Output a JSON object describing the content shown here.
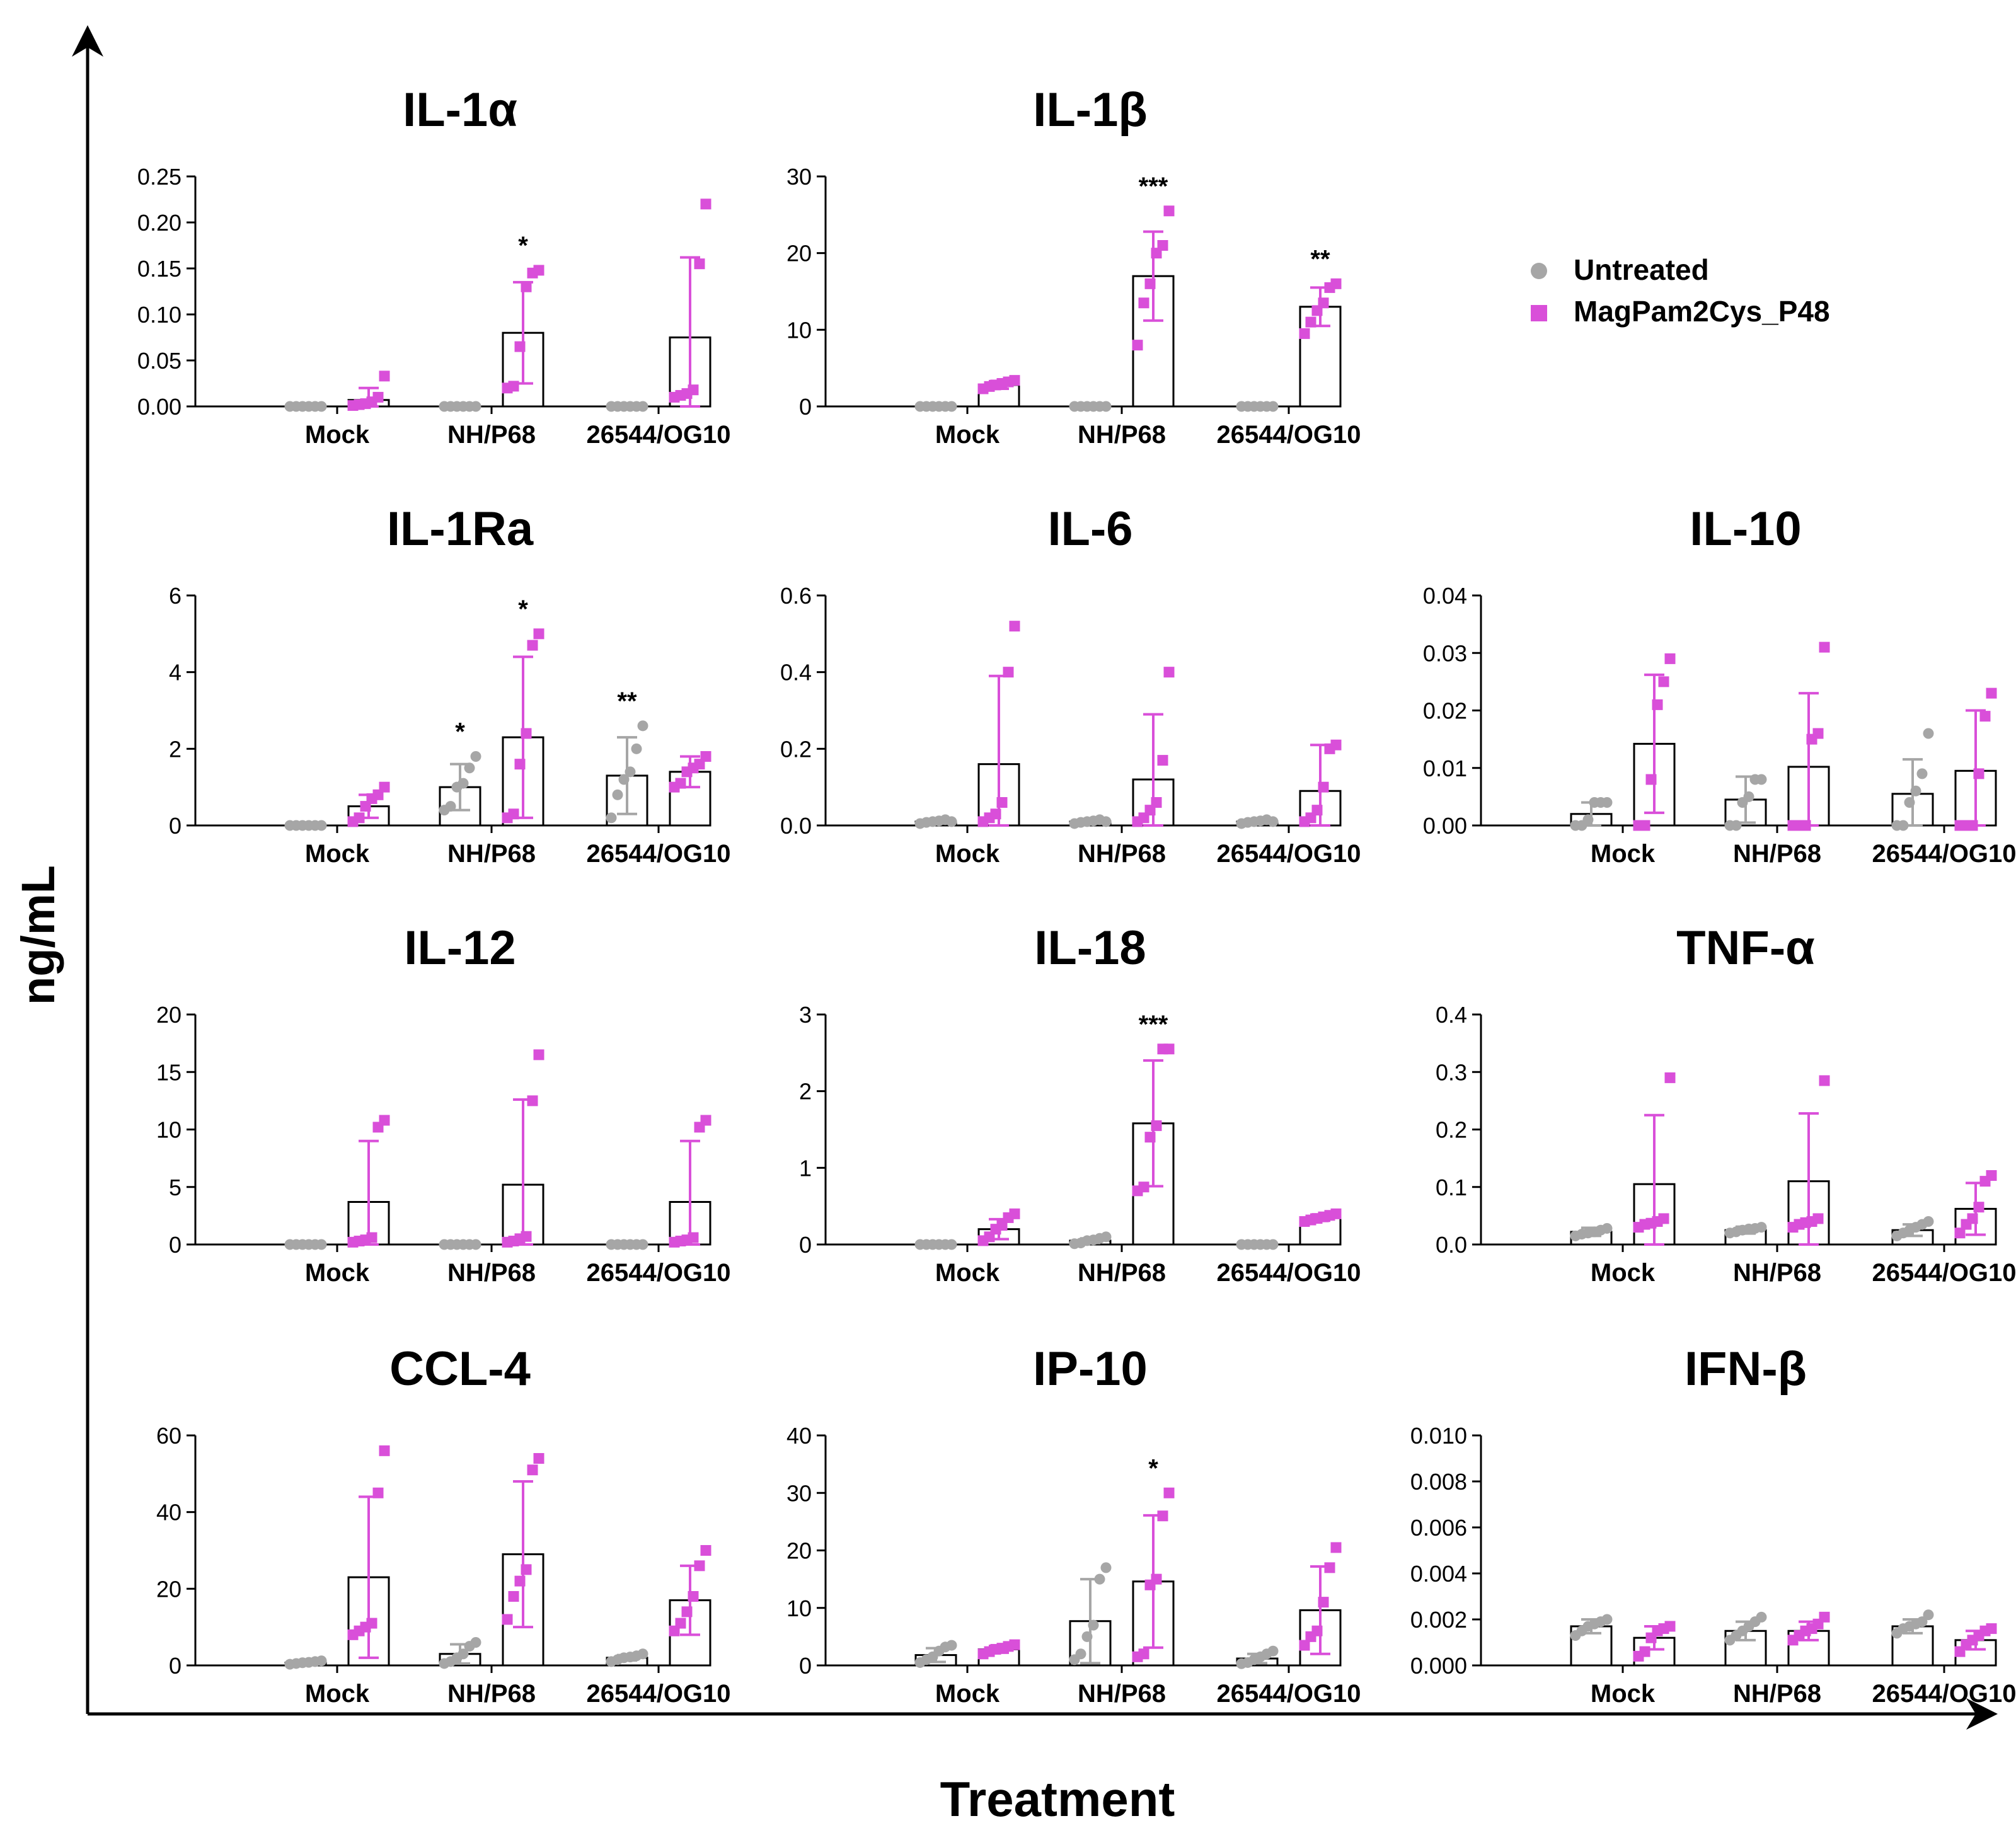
{
  "figure": {
    "ylabel": "ng/mL",
    "xlabel": "Treatment",
    "legend": {
      "placement": "top-right",
      "entries": [
        {
          "label": "Untreated",
          "color": "#a6a6a6",
          "marker": "circle"
        },
        {
          "label": "MagPam2Cys_P48",
          "color": "#d94fd9",
          "marker": "square"
        }
      ]
    },
    "colors": {
      "untreated": "#a6a6a6",
      "treated": "#d94fd9",
      "axis": "#000000"
    }
  },
  "chart_data": [
    {
      "type": "bar",
      "title": "IL-1α",
      "categories": [
        "Mock",
        "NH/P68",
        "26544/OG10"
      ],
      "ylim": [
        0,
        0.25
      ],
      "yticks": [
        "0.00",
        "0.05",
        "0.10",
        "0.15",
        "0.20",
        "0.25"
      ],
      "series": [
        {
          "name": "Untreated",
          "values": [
            0,
            0,
            0
          ],
          "errors": [
            0,
            0,
            0
          ],
          "points": [
            [
              0,
              0,
              0,
              0,
              0,
              0
            ],
            [
              0,
              0,
              0,
              0,
              0,
              0
            ],
            [
              0,
              0,
              0,
              0,
              0,
              0
            ]
          ]
        },
        {
          "name": "MagPam2Cys_P48",
          "values": [
            0.007,
            0.08,
            0.075
          ],
          "errors": [
            0.013,
            0.055,
            0.087
          ],
          "points": [
            [
              0.001,
              0.002,
              0.003,
              0.005,
              0.01,
              0.033
            ],
            [
              0.02,
              0.022,
              0.065,
              0.13,
              0.145,
              0.148
            ],
            [
              0.01,
              0.012,
              0.014,
              0.018,
              0.155,
              0.22
            ]
          ]
        }
      ],
      "annotations": [
        "",
        "*",
        ""
      ]
    },
    {
      "type": "bar",
      "title": "IL-1β",
      "categories": [
        "Mock",
        "NH/P68",
        "26544/OG10"
      ],
      "ylim": [
        0,
        30
      ],
      "yticks": [
        "0",
        "10",
        "20",
        "30"
      ],
      "series": [
        {
          "name": "Untreated",
          "values": [
            0,
            0,
            0
          ],
          "errors": [
            0,
            0,
            0
          ],
          "points": [
            [
              0,
              0,
              0,
              0,
              0,
              0
            ],
            [
              0,
              0,
              0,
              0,
              0,
              0
            ],
            [
              0,
              0,
              0,
              0,
              0,
              0
            ]
          ]
        },
        {
          "name": "MagPam2Cys_P48",
          "values": [
            2.8,
            17,
            13
          ],
          "errors": [
            0.5,
            5.8,
            2.5
          ],
          "points": [
            [
              2.3,
              2.6,
              2.8,
              3.0,
              3.2,
              3.4
            ],
            [
              8,
              13.5,
              16,
              20,
              21,
              25.5
            ],
            [
              9.5,
              11,
              12.5,
              13.5,
              15.5,
              16
            ]
          ]
        }
      ],
      "annotations": [
        "",
        "***",
        "**"
      ]
    },
    {
      "type": "bar",
      "title": "IL-1Ra",
      "categories": [
        "Mock",
        "NH/P68",
        "26544/OG10"
      ],
      "ylim": [
        0,
        6
      ],
      "yticks": [
        "0",
        "2",
        "4",
        "6"
      ],
      "series": [
        {
          "name": "Untreated",
          "values": [
            0,
            1.0,
            1.3
          ],
          "errors": [
            0,
            0.6,
            1.0
          ],
          "points": [
            [
              0,
              0,
              0,
              0,
              0,
              0
            ],
            [
              0.4,
              0.5,
              1.0,
              1.1,
              1.5,
              1.8
            ],
            [
              0.2,
              0.8,
              1.2,
              1.4,
              2.0,
              2.6
            ]
          ]
        },
        {
          "name": "MagPam2Cys_P48",
          "values": [
            0.5,
            2.3,
            1.4
          ],
          "errors": [
            0.3,
            2.1,
            0.4
          ],
          "points": [
            [
              0.1,
              0.2,
              0.5,
              0.7,
              0.8,
              1.0
            ],
            [
              0.2,
              0.3,
              1.6,
              2.4,
              4.7,
              5.0
            ],
            [
              1.0,
              1.1,
              1.4,
              1.5,
              1.6,
              1.8
            ]
          ]
        }
      ],
      "annotations": [
        "",
        "*",
        "**",
        "",
        "*",
        ""
      ]
    },
    {
      "type": "bar",
      "title": "IL-6",
      "categories": [
        "Mock",
        "NH/P68",
        "26544/OG10"
      ],
      "ylim": [
        0,
        0.6
      ],
      "yticks": [
        "0.0",
        "0.2",
        "0.4",
        "0.6"
      ],
      "series": [
        {
          "name": "Untreated",
          "values": [
            0.01,
            0.01,
            0.01
          ],
          "errors": [
            0.005,
            0.005,
            0.005
          ],
          "points": [
            [
              0.005,
              0.008,
              0.01,
              0.012,
              0.015,
              0.01
            ],
            [
              0.005,
              0.008,
              0.01,
              0.012,
              0.015,
              0.01
            ],
            [
              0.005,
              0.008,
              0.01,
              0.012,
              0.015,
              0.01
            ]
          ]
        },
        {
          "name": "MagPam2Cys_P48",
          "values": [
            0.16,
            0.12,
            0.09
          ],
          "errors": [
            0.23,
            0.17,
            0.12
          ],
          "points": [
            [
              0.01,
              0.02,
              0.03,
              0.06,
              0.4,
              0.52
            ],
            [
              0.01,
              0.02,
              0.04,
              0.06,
              0.17,
              0.4
            ],
            [
              0.01,
              0.02,
              0.04,
              0.1,
              0.2,
              0.21
            ]
          ]
        }
      ],
      "annotations": [
        "",
        "",
        ""
      ]
    },
    {
      "type": "bar",
      "title": "IL-10",
      "categories": [
        "Mock",
        "NH/P68",
        "26544/OG10"
      ],
      "ylim": [
        0,
        0.04
      ],
      "yticks": [
        "0.00",
        "0.01",
        "0.02",
        "0.03",
        "0.04"
      ],
      "series": [
        {
          "name": "Untreated",
          "values": [
            0.002,
            0.0045,
            0.0055
          ],
          "errors": [
            0.002,
            0.004,
            0.006
          ],
          "points": [
            [
              0,
              0,
              0.001,
              0.004,
              0.004,
              0.004
            ],
            [
              0,
              0,
              0.004,
              0.005,
              0.008,
              0.008
            ],
            [
              0,
              0,
              0.004,
              0.006,
              0.009,
              0.016
            ]
          ]
        },
        {
          "name": "MagPam2Cys_P48",
          "values": [
            0.0142,
            0.0102,
            0.0095
          ],
          "errors": [
            0.012,
            0.0128,
            0.0105
          ],
          "points": [
            [
              0.0,
              0.0,
              0.008,
              0.021,
              0.025,
              0.029
            ],
            [
              0.0,
              0.0,
              0.0,
              0.015,
              0.016,
              0.031
            ],
            [
              0.0,
              0.0,
              0.0,
              0.009,
              0.019,
              0.023
            ]
          ]
        }
      ],
      "annotations": [
        "",
        "",
        ""
      ]
    },
    {
      "type": "bar",
      "title": "IL-12",
      "categories": [
        "Mock",
        "NH/P68",
        "26544/OG10"
      ],
      "ylim": [
        0,
        20
      ],
      "yticks": [
        "0",
        "5",
        "10",
        "15",
        "20"
      ],
      "series": [
        {
          "name": "Untreated",
          "values": [
            0,
            0,
            0
          ],
          "errors": [
            0,
            0,
            0
          ],
          "points": [
            [
              0,
              0,
              0,
              0,
              0,
              0
            ],
            [
              0,
              0,
              0,
              0,
              0,
              0
            ],
            [
              0,
              0,
              0,
              0,
              0,
              0
            ]
          ]
        },
        {
          "name": "MagPam2Cys_P48",
          "values": [
            3.7,
            5.2,
            3.7
          ],
          "errors": [
            5.3,
            7.4,
            5.3
          ],
          "points": [
            [
              0.2,
              0.3,
              0.4,
              0.6,
              10.2,
              10.8
            ],
            [
              0.2,
              0.3,
              0.5,
              0.7,
              12.5,
              16.5
            ],
            [
              0.2,
              0.3,
              0.4,
              0.6,
              10.2,
              10.8
            ]
          ]
        }
      ],
      "annotations": [
        "",
        "",
        ""
      ]
    },
    {
      "type": "bar",
      "title": "IL-18",
      "categories": [
        "Mock",
        "NH/P68",
        "26544/OG10"
      ],
      "ylim": [
        0,
        3
      ],
      "yticks": [
        "0",
        "1",
        "2",
        "3"
      ],
      "series": [
        {
          "name": "Untreated",
          "values": [
            0,
            0.05,
            0
          ],
          "errors": [
            0,
            0.03,
            0
          ],
          "points": [
            [
              0,
              0,
              0,
              0,
              0,
              0
            ],
            [
              0.01,
              0.02,
              0.05,
              0.06,
              0.08,
              0.1
            ],
            [
              0,
              0,
              0,
              0,
              0,
              0
            ]
          ]
        },
        {
          "name": "MagPam2Cys_P48",
          "values": [
            0.2,
            1.58,
            0.35
          ],
          "errors": [
            0.13,
            0.82,
            0.04
          ],
          "points": [
            [
              0.05,
              0.1,
              0.2,
              0.25,
              0.35,
              0.4
            ],
            [
              0.7,
              0.75,
              1.4,
              1.55,
              2.55,
              2.55
            ],
            [
              0.3,
              0.32,
              0.34,
              0.36,
              0.38,
              0.4
            ]
          ]
        }
      ],
      "annotations": [
        "",
        "***",
        ""
      ]
    },
    {
      "type": "bar",
      "title": "TNF-α",
      "categories": [
        "Mock",
        "NH/P68",
        "26544/OG10"
      ],
      "ylim": [
        0,
        0.4
      ],
      "yticks": [
        "0.0",
        "0.1",
        "0.2",
        "0.3",
        "0.4"
      ],
      "series": [
        {
          "name": "Untreated",
          "values": [
            0.022,
            0.025,
            0.025
          ],
          "errors": [
            0.007,
            0.006,
            0.01
          ],
          "points": [
            [
              0.015,
              0.018,
              0.02,
              0.022,
              0.025,
              0.028
            ],
            [
              0.02,
              0.022,
              0.025,
              0.027,
              0.028,
              0.03
            ],
            [
              0.015,
              0.02,
              0.025,
              0.03,
              0.035,
              0.04
            ]
          ]
        },
        {
          "name": "MagPam2Cys_P48",
          "values": [
            0.105,
            0.11,
            0.062
          ],
          "errors": [
            0.12,
            0.118,
            0.045
          ],
          "points": [
            [
              0.03,
              0.035,
              0.037,
              0.04,
              0.045,
              0.29
            ],
            [
              0.03,
              0.035,
              0.038,
              0.04,
              0.045,
              0.285
            ],
            [
              0.02,
              0.035,
              0.045,
              0.065,
              0.11,
              0.12
            ]
          ]
        }
      ],
      "annotations": [
        "",
        "",
        ""
      ]
    },
    {
      "type": "bar",
      "title": "CCL-4",
      "categories": [
        "Mock",
        "NH/P68",
        "26544/OG10"
      ],
      "ylim": [
        0,
        60
      ],
      "yticks": [
        "0",
        "20",
        "40",
        "60"
      ],
      "series": [
        {
          "name": "Untreated",
          "values": [
            0.7,
            3,
            2
          ],
          "errors": [
            0.3,
            2.5,
            0.7
          ],
          "points": [
            [
              0.3,
              0.5,
              0.7,
              0.8,
              1.0,
              1.2
            ],
            [
              0.5,
              1,
              2,
              3,
              5,
              6
            ],
            [
              1,
              1.5,
              2,
              2.2,
              2.5,
              3
            ]
          ]
        },
        {
          "name": "MagPam2Cys_P48",
          "values": [
            23,
            29,
            17
          ],
          "errors": [
            21,
            19,
            9
          ],
          "points": [
            [
              8,
              9,
              10,
              11,
              45,
              56
            ],
            [
              12,
              18,
              22,
              25,
              51,
              54
            ],
            [
              9,
              11,
              14,
              18,
              26,
              30
            ]
          ]
        }
      ],
      "annotations": [
        "",
        "",
        ""
      ]
    },
    {
      "type": "bar",
      "title": "IP-10",
      "categories": [
        "Mock",
        "NH/P68",
        "26544/OG10"
      ],
      "ylim": [
        0,
        40
      ],
      "yticks": [
        "0",
        "10",
        "20",
        "30",
        "40"
      ],
      "series": [
        {
          "name": "Untreated",
          "values": [
            1.8,
            7.7,
            1.2
          ],
          "errors": [
            1.2,
            7.3,
            0.8
          ],
          "points": [
            [
              0.5,
              1,
              1.5,
              2.5,
              3.2,
              3.5
            ],
            [
              1,
              2,
              5,
              7,
              15,
              17
            ],
            [
              0.3,
              0.5,
              1,
              1.5,
              2,
              2.5
            ]
          ]
        },
        {
          "name": "MagPam2Cys_P48",
          "values": [
            2.8,
            14.6,
            9.6
          ],
          "errors": [
            0.6,
            11.5,
            7.6
          ],
          "points": [
            [
              2,
              2.4,
              2.8,
              3,
              3.3,
              3.6
            ],
            [
              1.5,
              2,
              14,
              15,
              26,
              30
            ],
            [
              3.5,
              5,
              6,
              11,
              17,
              20.5
            ]
          ]
        }
      ],
      "annotations": [
        "",
        "*",
        ""
      ]
    },
    {
      "type": "bar",
      "title": "IFN-β",
      "categories": [
        "Mock",
        "NH/P68",
        "26544/OG10"
      ],
      "ylim": [
        0,
        0.01
      ],
      "yticks": [
        "0.000",
        "0.002",
        "0.004",
        "0.006",
        "0.008",
        "0.010"
      ],
      "series": [
        {
          "name": "Untreated",
          "values": [
            0.0017,
            0.0015,
            0.0017
          ],
          "errors": [
            0.0003,
            0.0004,
            0.0003
          ],
          "points": [
            [
              0.0013,
              0.0015,
              0.0017,
              0.0018,
              0.0019,
              0.002
            ],
            [
              0.0011,
              0.0013,
              0.0015,
              0.0017,
              0.0019,
              0.0021
            ],
            [
              0.0014,
              0.0016,
              0.0017,
              0.0018,
              0.0019,
              0.0022
            ]
          ]
        },
        {
          "name": "MagPam2Cys_P48",
          "values": [
            0.0012,
            0.0015,
            0.0011
          ],
          "errors": [
            0.0005,
            0.0004,
            0.0004
          ],
          "points": [
            [
              0.0004,
              0.0006,
              0.0012,
              0.0015,
              0.0016,
              0.0017
            ],
            [
              0.0011,
              0.0013,
              0.0015,
              0.0016,
              0.0018,
              0.0021
            ],
            [
              0.0006,
              0.0009,
              0.0011,
              0.0013,
              0.0015,
              0.0016
            ]
          ]
        }
      ],
      "annotations": [
        "",
        "",
        ""
      ]
    }
  ]
}
